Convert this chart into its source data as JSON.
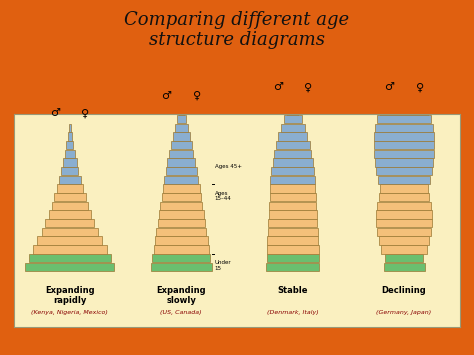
{
  "title": "Comparing different age\nstructure diagrams",
  "title_color": "#111111",
  "bg_color": "#E06010",
  "panel_color": "#FAF0C0",
  "panel_border": "#999977",
  "bar_blue": "#8AAED0",
  "bar_orange": "#F4C07A",
  "bar_green": "#6BBF6F",
  "border_color": "#997733",
  "diagrams": [
    {
      "label": "Expanding\nrapidly",
      "sublabel": "(Kenya, Nigeria, Mexico)",
      "type": "expanding_rapidly",
      "green_half": [
        0.1,
        0.092
      ],
      "orange_half": [
        0.083,
        0.073,
        0.063,
        0.055,
        0.048,
        0.041,
        0.035,
        0.029
      ],
      "blue_half": [
        0.024,
        0.019,
        0.015,
        0.011,
        0.008,
        0.005,
        0.003
      ]
    },
    {
      "label": "Expanding\nslowly",
      "sublabel": "(US, Canada)",
      "type": "expanding_slowly",
      "green_half": [
        0.068,
        0.065
      ],
      "orange_half": [
        0.062,
        0.059,
        0.056,
        0.053,
        0.05,
        0.047,
        0.044,
        0.041
      ],
      "blue_half": [
        0.038,
        0.035,
        0.031,
        0.027,
        0.023,
        0.019,
        0.015,
        0.01,
        0.006
      ]
    },
    {
      "label": "Stable",
      "sublabel": "(Denmark, Italy)",
      "type": "stable",
      "green_half": [
        0.06,
        0.058
      ],
      "orange_half": [
        0.058,
        0.057,
        0.056,
        0.055,
        0.054,
        0.053,
        0.052,
        0.051
      ],
      "blue_half": [
        0.05,
        0.048,
        0.045,
        0.042,
        0.038,
        0.033,
        0.027,
        0.02,
        0.013,
        0.007
      ]
    },
    {
      "label": "Declining",
      "sublabel": "(Germany, Japan)",
      "type": "declining",
      "green_half": [
        0.046,
        0.042
      ],
      "orange_half": [
        0.052,
        0.057,
        0.061,
        0.063,
        0.062,
        0.06,
        0.057,
        0.054
      ],
      "blue_half": [
        0.058,
        0.062,
        0.065,
        0.067,
        0.068,
        0.067,
        0.065,
        0.061,
        0.054,
        0.04
      ]
    }
  ],
  "age_labels": {
    "under15": "Under\n15",
    "ages1544": "Ages\n15–44",
    "ages45": "Ages 45+"
  }
}
